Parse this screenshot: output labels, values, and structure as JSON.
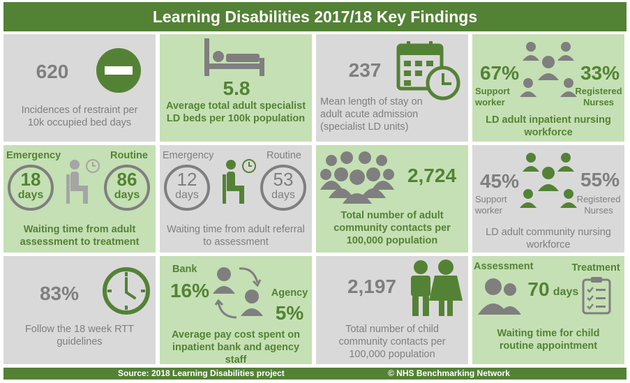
{
  "title": "Learning Disabilities 2017/18 Key Findings",
  "footer": {
    "source": "Source: 2018 Learning Disabilities project",
    "copyright": "© NHS Benchmarking Network"
  },
  "colors": {
    "green_dark": "#538135",
    "green_light": "#c5e0b4",
    "grey_tile": "#d9d9d9",
    "grey_text": "#7f7f7f"
  },
  "tiles": {
    "restraint": {
      "value": "620",
      "label": "Incidences of restraint per 10k occupied bed days",
      "icon": "no-entry-icon"
    },
    "beds": {
      "value": "5.8",
      "label": "Average total adult specialist LD beds per 100k population",
      "icon": "bed-icon"
    },
    "stay": {
      "value": "237",
      "label": "Mean length of stay on adult acute admission (specialist LD units)",
      "icon": "calendar-clock-icon"
    },
    "inpatient_workforce": {
      "support_pct": "67%",
      "support_label": "Support worker",
      "nurse_pct": "33%",
      "nurse_label": "Registered Nurses",
      "label": "LD adult inpatient nursing workforce"
    },
    "wait_treatment": {
      "emergency_label": "Emergency",
      "routine_label": "Routine",
      "emergency_value": "18",
      "routine_value": "86",
      "unit": "days",
      "label": "Waiting time from adult assessment to treatment"
    },
    "wait_assessment": {
      "emergency_label": "Emergency",
      "routine_label": "Routine",
      "emergency_value": "12",
      "routine_value": "53",
      "unit": "days",
      "label": "Waiting time from adult referral to assessment"
    },
    "community_contacts": {
      "value": "2,724",
      "label": "Total number of adult community contacts per 100,000 population"
    },
    "community_workforce": {
      "support_pct": "45%",
      "support_label": "Support worker",
      "nurse_pct": "55%",
      "nurse_label": "Registered Nurses",
      "label": "LD adult community nursing workforce"
    },
    "rtt": {
      "value": "83%",
      "label": "Follow the 18 week RTT guidelines"
    },
    "pay": {
      "bank_label": "Bank",
      "bank_value": "16%",
      "agency_label": "Agency",
      "agency_value": "5%",
      "label": "Average pay cost spent on inpatient bank and agency staff"
    },
    "child_contacts": {
      "value": "2,197",
      "label": "Total number of child community contacts per 100,000 population"
    },
    "child_wait": {
      "assessment_label": "Assessment",
      "treatment_label": "Treatment",
      "value": "70",
      "unit": "days",
      "label": "Waiting time for child routine appointment"
    }
  }
}
